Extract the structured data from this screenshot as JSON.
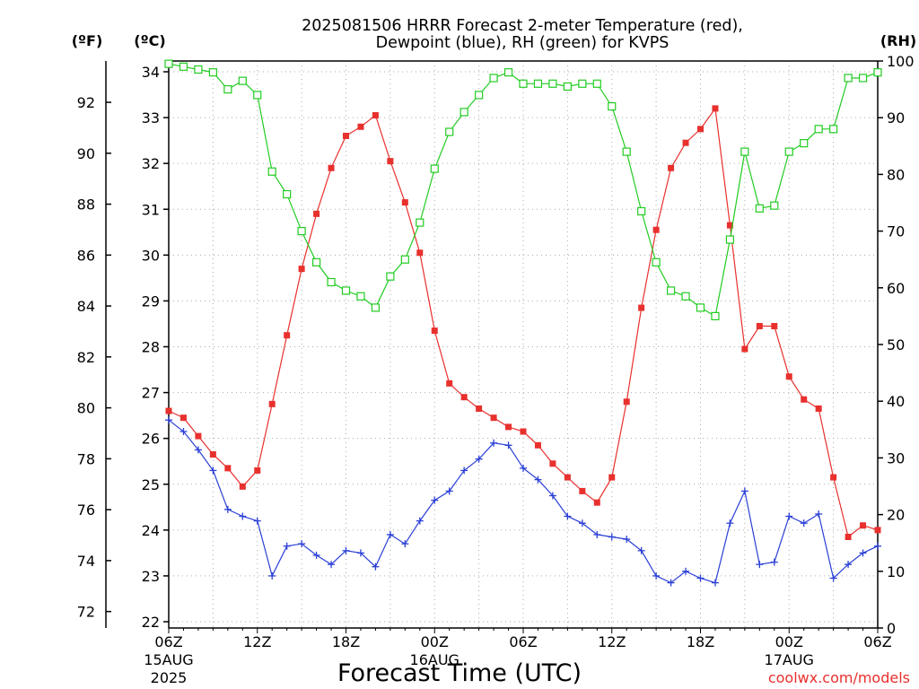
{
  "title_line1": "2025081506 HRRR Forecast 2-meter Temperature (red),",
  "title_line2": "Dewpoint (blue), RH (green) for KVPS",
  "xlabel": "Forecast Time (UTC)",
  "credit": "coolwx.com/models",
  "unit_f": "(ºF)",
  "unit_c": "(ºC)",
  "unit_rh": "(RH)",
  "colors": {
    "temperature": "#e8302d",
    "dewpoint": "#2a3fd6",
    "rh": "#22cc22",
    "grid": "#aaaaaa"
  },
  "chart_data": {
    "type": "line",
    "x_hours": [
      0,
      1,
      2,
      3,
      4,
      5,
      6,
      7,
      8,
      9,
      10,
      11,
      12,
      13,
      14,
      15,
      16,
      17,
      18,
      19,
      20,
      21,
      22,
      23,
      24,
      25,
      26,
      27,
      28,
      29,
      30,
      31,
      32,
      33,
      34,
      35,
      36,
      37,
      38,
      39,
      40,
      41,
      42,
      43,
      44,
      45,
      46,
      47,
      48
    ],
    "x_ticks": [
      {
        "h": 0,
        "lines": [
          "06Z",
          "15AUG",
          "2025"
        ]
      },
      {
        "h": 6,
        "lines": [
          "12Z"
        ]
      },
      {
        "h": 12,
        "lines": [
          "18Z"
        ]
      },
      {
        "h": 18,
        "lines": [
          "00Z",
          "16AUG"
        ]
      },
      {
        "h": 24,
        "lines": [
          "06Z"
        ]
      },
      {
        "h": 30,
        "lines": [
          "12Z"
        ]
      },
      {
        "h": 36,
        "lines": [
          "18Z"
        ]
      },
      {
        "h": 42,
        "lines": [
          "00Z",
          "17AUG"
        ]
      },
      {
        "h": 48,
        "lines": [
          "06Z"
        ]
      }
    ],
    "y_celsius": {
      "range": [
        22,
        34
      ],
      "ticks": [
        22,
        23,
        24,
        25,
        26,
        27,
        28,
        29,
        30,
        31,
        32,
        33,
        34
      ]
    },
    "y_fahrenheit": {
      "ticks": [
        72,
        74,
        76,
        78,
        80,
        82,
        84,
        86,
        88,
        90,
        92
      ]
    },
    "y_rh": {
      "range": [
        0,
        100
      ],
      "ticks": [
        0,
        10,
        20,
        30,
        40,
        50,
        60,
        70,
        80,
        90,
        100
      ]
    },
    "grid": true,
    "series": [
      {
        "name": "Temperature",
        "axis": "celsius",
        "marker": "filled-square",
        "values": [
          26.6,
          26.45,
          26.05,
          25.65,
          25.35,
          24.95,
          25.3,
          26.75,
          28.25,
          29.7,
          30.9,
          31.9,
          32.6,
          32.8,
          33.05,
          32.05,
          31.15,
          30.05,
          28.35,
          27.2,
          26.9,
          26.65,
          26.45,
          26.25,
          26.15,
          25.85,
          25.45,
          25.15,
          24.85,
          24.6,
          25.15,
          26.8,
          28.85,
          30.55,
          31.9,
          32.45,
          32.75,
          33.2,
          30.65,
          27.95,
          28.45,
          28.45,
          27.35,
          26.85,
          26.65,
          25.15,
          23.85,
          24.1,
          24.0
        ]
      },
      {
        "name": "Dewpoint",
        "axis": "celsius",
        "marker": "plus",
        "values": [
          26.4,
          26.15,
          25.75,
          25.3,
          24.45,
          24.3,
          24.2,
          23.0,
          23.65,
          23.7,
          23.45,
          23.25,
          23.55,
          23.5,
          23.2,
          23.9,
          23.7,
          24.2,
          24.65,
          24.85,
          25.3,
          25.55,
          25.9,
          25.85,
          25.35,
          25.1,
          24.75,
          24.3,
          24.15,
          23.9,
          23.85,
          23.8,
          23.55,
          23.0,
          22.85,
          23.1,
          22.95,
          22.85,
          24.15,
          24.85,
          23.25,
          23.3,
          24.3,
          24.15,
          24.35,
          22.95,
          23.25,
          23.5,
          23.65
        ]
      },
      {
        "name": "RH",
        "axis": "rh",
        "marker": "open-square",
        "values": [
          99.5,
          99,
          98.5,
          98,
          95,
          96.5,
          94,
          80.5,
          76.5,
          70,
          64.5,
          61,
          59.5,
          58.5,
          56.5,
          62,
          65,
          71.5,
          81,
          87.5,
          91,
          94,
          97,
          98,
          96,
          96,
          96,
          95.5,
          96,
          96,
          92,
          84,
          73.5,
          64.5,
          59.5,
          58.5,
          56.5,
          55,
          68.5,
          84,
          74,
          74.5,
          84,
          85.5,
          88,
          88,
          97,
          97,
          98
        ]
      }
    ]
  }
}
